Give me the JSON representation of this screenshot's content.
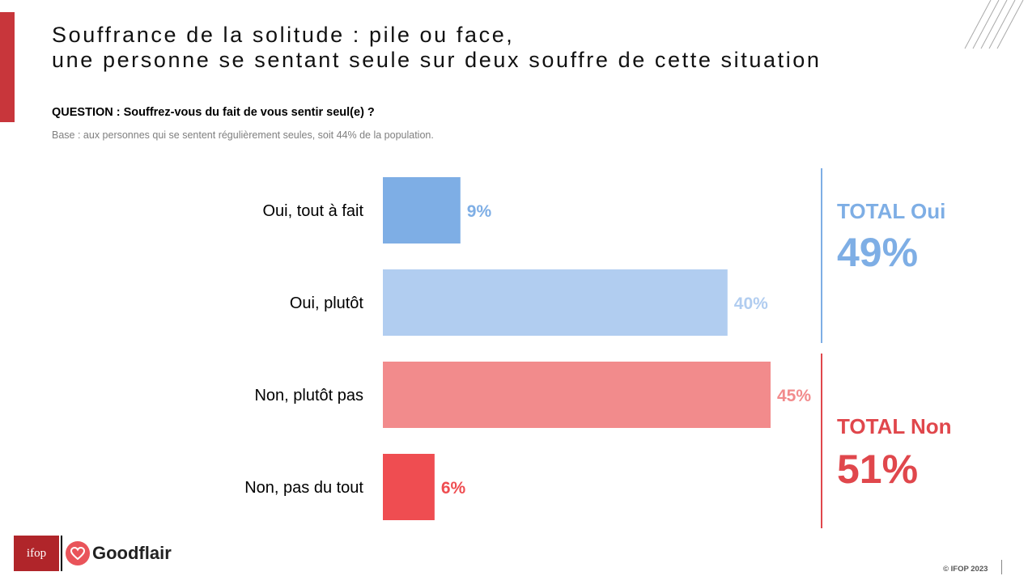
{
  "header": {
    "title_line1": "Souffrance de la solitude : pile ou face,",
    "title_line2": "une personne se sentant seule sur deux souffre de cette situation",
    "question": "QUESTION : Souffrez-vous du fait de vous sentir seul(e) ?",
    "base": "Base : aux personnes qui se sentent régulièrement seules, soit 44% de la population."
  },
  "chart_data": {
    "type": "bar",
    "orientation": "horizontal",
    "categories": [
      "Oui, tout à fait",
      "Oui, plutôt",
      "Non, plutôt pas",
      "Non, pas du tout"
    ],
    "values": [
      9,
      40,
      45,
      6
    ],
    "value_labels": [
      "9%",
      "40%",
      "45%",
      "6%"
    ],
    "colors": [
      "#7eaee5",
      "#b1cdf0",
      "#f28b8c",
      "#ef4d51"
    ],
    "label_colors": [
      "#7eaee5",
      "#b1cdf0",
      "#f28b8c",
      "#ef4d51"
    ],
    "xlim": [
      0,
      45
    ],
    "grid": false,
    "totals": [
      {
        "label": "TOTAL Oui",
        "value": "49%",
        "color": "#7eaee5"
      },
      {
        "label": "TOTAL Non",
        "value": "51%",
        "color": "#e0474c"
      }
    ]
  },
  "footer": {
    "logo_ifop": "ifop",
    "logo_goodflair": "Goodflair",
    "copyright": "© IFOP 2023"
  },
  "colors": {
    "accent": "#c8363b",
    "brand_red": "#b0252a"
  }
}
